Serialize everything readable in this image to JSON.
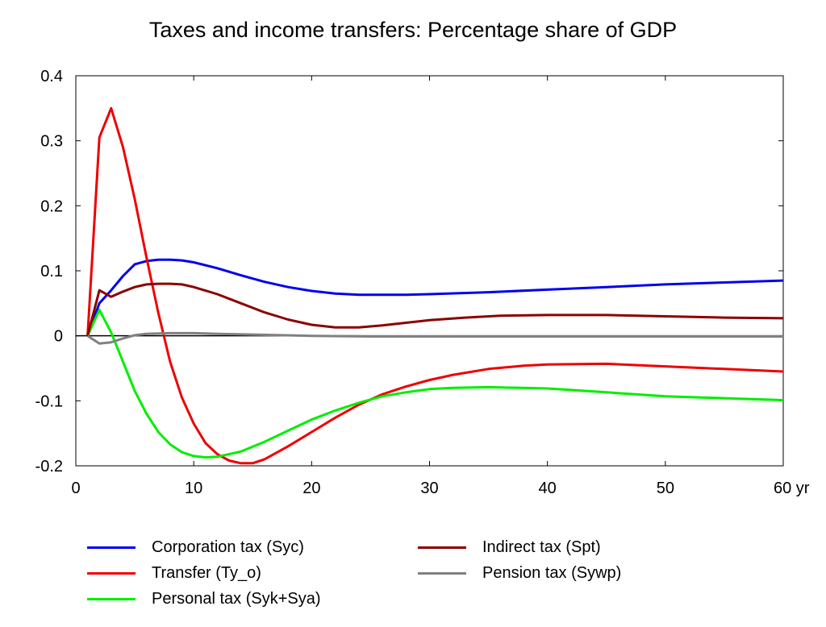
{
  "chart_data": {
    "type": "line",
    "title": "Taxes and income transfers: Percentage share of GDP",
    "xlabel": "",
    "ylabel": "",
    "xlim": [
      0,
      60
    ],
    "ylim": [
      -0.2,
      0.4
    ],
    "x_ticks": [
      0,
      10,
      20,
      30,
      40,
      50,
      60
    ],
    "x_tick_labels": [
      "0",
      "10",
      "20",
      "30",
      "40",
      "50",
      "60 yr"
    ],
    "y_ticks": [
      0.4,
      0.3,
      0.2,
      0.1,
      0,
      -0.1,
      -0.2
    ],
    "y_tick_labels": [
      "0.4",
      "0.3",
      "0.2",
      "0.1",
      "0",
      "-0.1",
      "-0.2"
    ],
    "grid": false,
    "legend_position": "bottom",
    "series": [
      {
        "name": "Corporation tax (Syc)",
        "color": "#0000ee",
        "points": [
          [
            1,
            0
          ],
          [
            2,
            0.05
          ],
          [
            3,
            0.07
          ],
          [
            4,
            0.092
          ],
          [
            5,
            0.11
          ],
          [
            6,
            0.115
          ],
          [
            7,
            0.117
          ],
          [
            8,
            0.117
          ],
          [
            9,
            0.116
          ],
          [
            10,
            0.113
          ],
          [
            12,
            0.104
          ],
          [
            14,
            0.093
          ],
          [
            16,
            0.083
          ],
          [
            18,
            0.075
          ],
          [
            20,
            0.069
          ],
          [
            22,
            0.065
          ],
          [
            24,
            0.063
          ],
          [
            26,
            0.063
          ],
          [
            28,
            0.063
          ],
          [
            30,
            0.064
          ],
          [
            35,
            0.067
          ],
          [
            40,
            0.071
          ],
          [
            45,
            0.075
          ],
          [
            50,
            0.079
          ],
          [
            55,
            0.082
          ],
          [
            60,
            0.085
          ]
        ]
      },
      {
        "name": "Transfer (Ty_o)",
        "color": "#ee0000",
        "points": [
          [
            1,
            0
          ],
          [
            2,
            0.305
          ],
          [
            3,
            0.35
          ],
          [
            4,
            0.29
          ],
          [
            5,
            0.21
          ],
          [
            6,
            0.12
          ],
          [
            7,
            0.035
          ],
          [
            8,
            -0.04
          ],
          [
            9,
            -0.095
          ],
          [
            10,
            -0.135
          ],
          [
            11,
            -0.165
          ],
          [
            12,
            -0.182
          ],
          [
            13,
            -0.192
          ],
          [
            14,
            -0.196
          ],
          [
            15,
            -0.196
          ],
          [
            16,
            -0.19
          ],
          [
            18,
            -0.17
          ],
          [
            20,
            -0.148
          ],
          [
            22,
            -0.126
          ],
          [
            24,
            -0.106
          ],
          [
            26,
            -0.09
          ],
          [
            28,
            -0.078
          ],
          [
            30,
            -0.068
          ],
          [
            32,
            -0.06
          ],
          [
            35,
            -0.051
          ],
          [
            38,
            -0.046
          ],
          [
            40,
            -0.044
          ],
          [
            45,
            -0.043
          ],
          [
            50,
            -0.047
          ],
          [
            55,
            -0.051
          ],
          [
            60,
            -0.055
          ]
        ]
      },
      {
        "name": "Personal tax (Syk+Sya)",
        "color": "#00ee00",
        "points": [
          [
            1,
            0
          ],
          [
            2,
            0.04
          ],
          [
            3,
            0.005
          ],
          [
            4,
            -0.04
          ],
          [
            5,
            -0.085
          ],
          [
            6,
            -0.12
          ],
          [
            7,
            -0.148
          ],
          [
            8,
            -0.167
          ],
          [
            9,
            -0.179
          ],
          [
            10,
            -0.185
          ],
          [
            11,
            -0.187
          ],
          [
            12,
            -0.186
          ],
          [
            14,
            -0.178
          ],
          [
            16,
            -0.163
          ],
          [
            18,
            -0.146
          ],
          [
            20,
            -0.129
          ],
          [
            22,
            -0.115
          ],
          [
            24,
            -0.103
          ],
          [
            26,
            -0.093
          ],
          [
            28,
            -0.087
          ],
          [
            30,
            -0.082
          ],
          [
            32,
            -0.08
          ],
          [
            35,
            -0.079
          ],
          [
            40,
            -0.081
          ],
          [
            45,
            -0.087
          ],
          [
            50,
            -0.093
          ],
          [
            55,
            -0.096
          ],
          [
            60,
            -0.099
          ]
        ]
      },
      {
        "name": "Indirect tax (Spt)",
        "color": "#8b0000",
        "points": [
          [
            1,
            0
          ],
          [
            2,
            0.07
          ],
          [
            3,
            0.06
          ],
          [
            4,
            0.068
          ],
          [
            5,
            0.075
          ],
          [
            6,
            0.079
          ],
          [
            7,
            0.08
          ],
          [
            8,
            0.08
          ],
          [
            9,
            0.079
          ],
          [
            10,
            0.075
          ],
          [
            12,
            0.064
          ],
          [
            14,
            0.05
          ],
          [
            16,
            0.036
          ],
          [
            18,
            0.025
          ],
          [
            20,
            0.017
          ],
          [
            22,
            0.013
          ],
          [
            24,
            0.013
          ],
          [
            26,
            0.016
          ],
          [
            28,
            0.02
          ],
          [
            30,
            0.024
          ],
          [
            33,
            0.028
          ],
          [
            36,
            0.031
          ],
          [
            40,
            0.032
          ],
          [
            45,
            0.032
          ],
          [
            50,
            0.03
          ],
          [
            55,
            0.028
          ],
          [
            60,
            0.027
          ]
        ]
      },
      {
        "name": "Pension tax (Sywp)",
        "color": "#808080",
        "points": [
          [
            1,
            0
          ],
          [
            2,
            -0.012
          ],
          [
            3,
            -0.01
          ],
          [
            4,
            -0.004
          ],
          [
            5,
            0.001
          ],
          [
            6,
            0.003
          ],
          [
            8,
            0.004
          ],
          [
            10,
            0.004
          ],
          [
            12,
            0.003
          ],
          [
            15,
            0.002
          ],
          [
            20,
            0
          ],
          [
            25,
            -0.001
          ],
          [
            30,
            -0.001
          ],
          [
            40,
            -0.001
          ],
          [
            50,
            -0.001
          ],
          [
            60,
            -0.001
          ]
        ]
      }
    ],
    "legend": [
      {
        "label": "Corporation tax (Syc)",
        "color": "#0000ee"
      },
      {
        "label": "Indirect tax (Spt)",
        "color": "#8b0000"
      },
      {
        "label": "Transfer (Ty_o)",
        "color": "#ee0000"
      },
      {
        "label": "Pension tax (Sywp)",
        "color": "#808080"
      },
      {
        "label": "Personal tax (Syk+Sya)",
        "color": "#00ee00"
      }
    ]
  }
}
